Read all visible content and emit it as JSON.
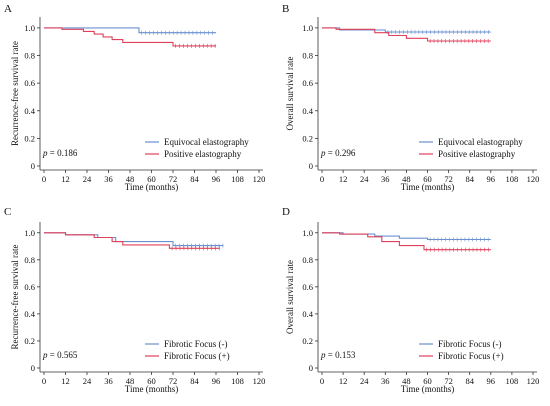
{
  "colors": {
    "blue": "#6a8fd0",
    "red": "#e0405a",
    "axis": "#333333"
  },
  "chart_data": [
    {
      "type": "line",
      "panel_label": "A",
      "ylabel": "Recurrence-free survival rate",
      "xlabel": "Time (months)",
      "xticks": [
        "0",
        "12",
        "24",
        "36",
        "48",
        "60",
        "72",
        "84",
        "96",
        "108",
        "120"
      ],
      "yticks": [
        "0",
        "0.2",
        "0.4",
        "0.6",
        "0.8",
        "1.0"
      ],
      "xlim": [
        0,
        120
      ],
      "ylim": [
        0,
        1.05
      ],
      "p_prefix": "p",
      "p_suffix": " = 0.186",
      "legend_position": "bottom-right",
      "series": [
        {
          "name": "Equivocal elastography",
          "color": "#6a8fd0",
          "x": [
            0,
            53,
            53,
            96
          ],
          "y": [
            1.0,
            1.0,
            0.965,
            0.965
          ]
        },
        {
          "name": "Positive elastography",
          "color": "#e0405a",
          "x": [
            0,
            10,
            10,
            22,
            22,
            28,
            28,
            33,
            33,
            38,
            38,
            44,
            44,
            72,
            72,
            96
          ],
          "y": [
            1.0,
            1.0,
            0.99,
            0.99,
            0.975,
            0.975,
            0.955,
            0.955,
            0.935,
            0.935,
            0.915,
            0.915,
            0.895,
            0.895,
            0.87,
            0.87
          ]
        }
      ]
    },
    {
      "type": "line",
      "panel_label": "B",
      "ylabel": "Overall survival rate",
      "xlabel": "Time (months)",
      "xticks": [
        "0",
        "12",
        "24",
        "36",
        "48",
        "60",
        "72",
        "84",
        "96",
        "108",
        "120"
      ],
      "yticks": [
        "0",
        "0.2",
        "0.4",
        "0.6",
        "0.8",
        "1.0"
      ],
      "xlim": [
        0,
        120
      ],
      "ylim": [
        0,
        1.05
      ],
      "p_prefix": "p",
      "p_suffix": " = 0.296",
      "legend_position": "bottom-right",
      "series": [
        {
          "name": "Equivocal elastography",
          "color": "#6a8fd0",
          "x": [
            0,
            10,
            10,
            36,
            36,
            96
          ],
          "y": [
            1.0,
            1.0,
            0.985,
            0.985,
            0.97,
            0.97
          ]
        },
        {
          "name": "Positive elastography",
          "color": "#e0405a",
          "x": [
            0,
            8,
            8,
            30,
            30,
            38,
            38,
            48,
            48,
            60,
            60,
            96
          ],
          "y": [
            1.0,
            1.0,
            0.99,
            0.99,
            0.965,
            0.965,
            0.945,
            0.945,
            0.925,
            0.925,
            0.905,
            0.905
          ]
        }
      ]
    },
    {
      "type": "line",
      "panel_label": "C",
      "ylabel": "Recurrence-free survival rate",
      "xlabel": "Time (months)",
      "xticks": [
        "0",
        "12",
        "24",
        "36",
        "48",
        "60",
        "72",
        "84",
        "96",
        "108",
        "120"
      ],
      "yticks": [
        "0",
        "0.2",
        "0.4",
        "0.6",
        "0.8",
        "1.0"
      ],
      "xlim": [
        0,
        120
      ],
      "ylim": [
        0,
        1.05
      ],
      "p_prefix": "p",
      "p_suffix": " = 0.565",
      "legend_position": "bottom-right",
      "series": [
        {
          "name": "Fibrotic Focus (-)",
          "color": "#6a8fd0",
          "x": [
            0,
            12,
            12,
            30,
            30,
            40,
            40,
            72,
            72,
            100
          ],
          "y": [
            1.0,
            1.0,
            0.985,
            0.985,
            0.965,
            0.965,
            0.935,
            0.935,
            0.905,
            0.905
          ]
        },
        {
          "name": "Fibrotic Focus (+)",
          "color": "#e0405a",
          "x": [
            0,
            12,
            12,
            28,
            28,
            38,
            38,
            44,
            44,
            70,
            70,
            98
          ],
          "y": [
            1.0,
            1.0,
            0.985,
            0.985,
            0.965,
            0.965,
            0.935,
            0.935,
            0.91,
            0.91,
            0.885,
            0.885
          ]
        }
      ]
    },
    {
      "type": "line",
      "panel_label": "D",
      "ylabel": "Overall survival rate",
      "xlabel": "Time (months)",
      "xticks": [
        "0",
        "12",
        "24",
        "36",
        "48",
        "60",
        "72",
        "84",
        "96",
        "108",
        "120"
      ],
      "yticks": [
        "0",
        "0.2",
        "0.4",
        "0.6",
        "0.8",
        "1.0"
      ],
      "xlim": [
        0,
        120
      ],
      "ylim": [
        0,
        1.05
      ],
      "p_prefix": "p",
      "p_suffix": " = 0.153",
      "legend_position": "bottom-right",
      "series": [
        {
          "name": "Fibrotic Focus (-)",
          "color": "#6a8fd0",
          "x": [
            0,
            12,
            12,
            30,
            30,
            44,
            44,
            60,
            60,
            96
          ],
          "y": [
            1.0,
            1.0,
            0.99,
            0.99,
            0.975,
            0.975,
            0.96,
            0.96,
            0.95,
            0.95
          ]
        },
        {
          "name": "Fibrotic Focus (+)",
          "color": "#e0405a",
          "x": [
            0,
            10,
            10,
            26,
            26,
            34,
            34,
            44,
            44,
            58,
            58,
            96
          ],
          "y": [
            1.0,
            1.0,
            0.99,
            0.99,
            0.97,
            0.97,
            0.935,
            0.935,
            0.905,
            0.905,
            0.875,
            0.875
          ]
        }
      ]
    }
  ]
}
